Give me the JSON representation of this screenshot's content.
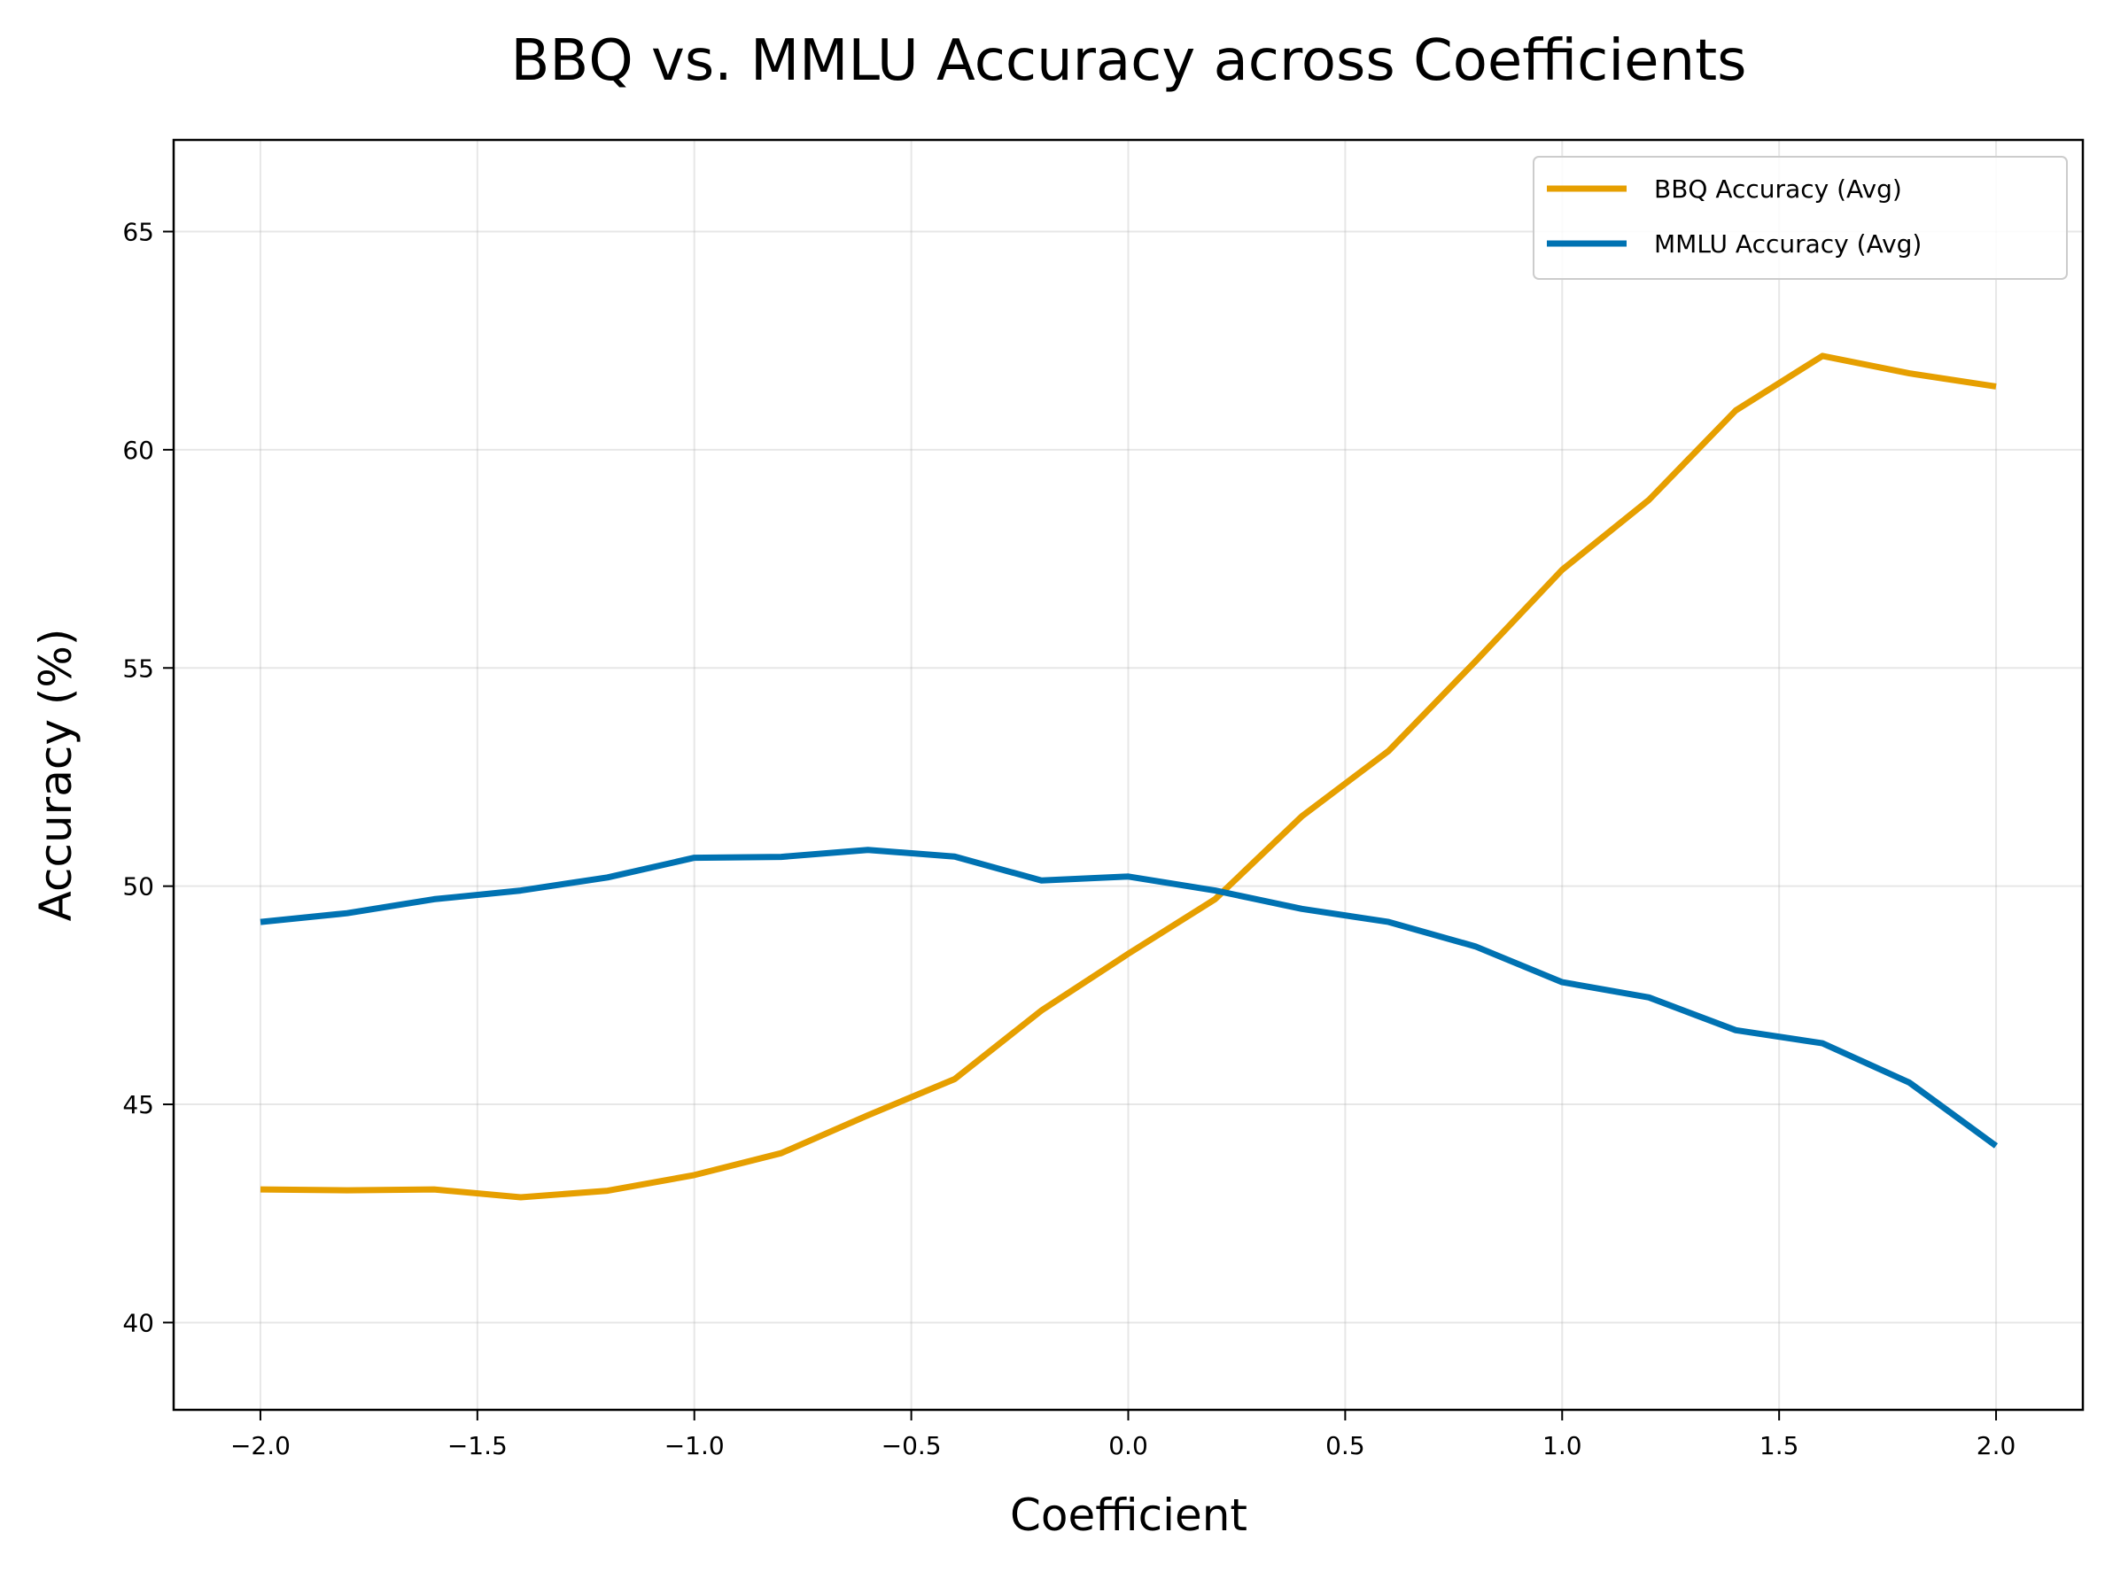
{
  "chart_data": {
    "type": "line",
    "title": "BBQ vs. MMLU Accuracy across Coefficients",
    "xlabel": "Coefficient",
    "ylabel": "Accuracy (%)",
    "xlim": [
      -2.2,
      2.2
    ],
    "ylim": [
      38,
      67.1
    ],
    "xticks": [
      -2.0,
      -1.5,
      -1.0,
      -0.5,
      0.0,
      0.5,
      1.0,
      1.5,
      2.0
    ],
    "xtick_labels": [
      "−2.0",
      "−1.5",
      "−1.0",
      "−0.5",
      "0.0",
      "0.5",
      "1.0",
      "1.5",
      "2.0"
    ],
    "yticks": [
      40,
      45,
      50,
      55,
      60,
      65
    ],
    "ytick_labels": [
      "40",
      "45",
      "50",
      "55",
      "60",
      "65"
    ],
    "grid": true,
    "legend_position": "top-right",
    "x": [
      -2.0,
      -1.8,
      -1.6,
      -1.4,
      -1.2,
      -1.0,
      -0.8,
      -0.6,
      -0.4,
      -0.2,
      0.0,
      0.2,
      0.4,
      0.6,
      0.8,
      1.0,
      1.2,
      1.4,
      1.6,
      1.8,
      2.0
    ],
    "series": [
      {
        "name": "BBQ Accuracy (Avg)",
        "color": "#E69F00",
        "values": [
          43.05,
          43.03,
          43.05,
          42.87,
          43.02,
          43.38,
          43.88,
          44.75,
          45.58,
          47.15,
          48.45,
          49.7,
          51.6,
          53.1,
          55.15,
          57.25,
          58.85,
          60.9,
          62.15,
          61.75,
          61.45
        ]
      },
      {
        "name": "MMLU Accuracy (Avg)",
        "color": "#0072B2",
        "values": [
          49.18,
          49.38,
          49.7,
          49.9,
          50.2,
          50.65,
          50.67,
          50.83,
          50.68,
          50.13,
          50.22,
          49.9,
          49.48,
          49.18,
          48.62,
          47.8,
          47.45,
          46.7,
          46.4,
          45.5,
          44.05
        ]
      }
    ]
  }
}
